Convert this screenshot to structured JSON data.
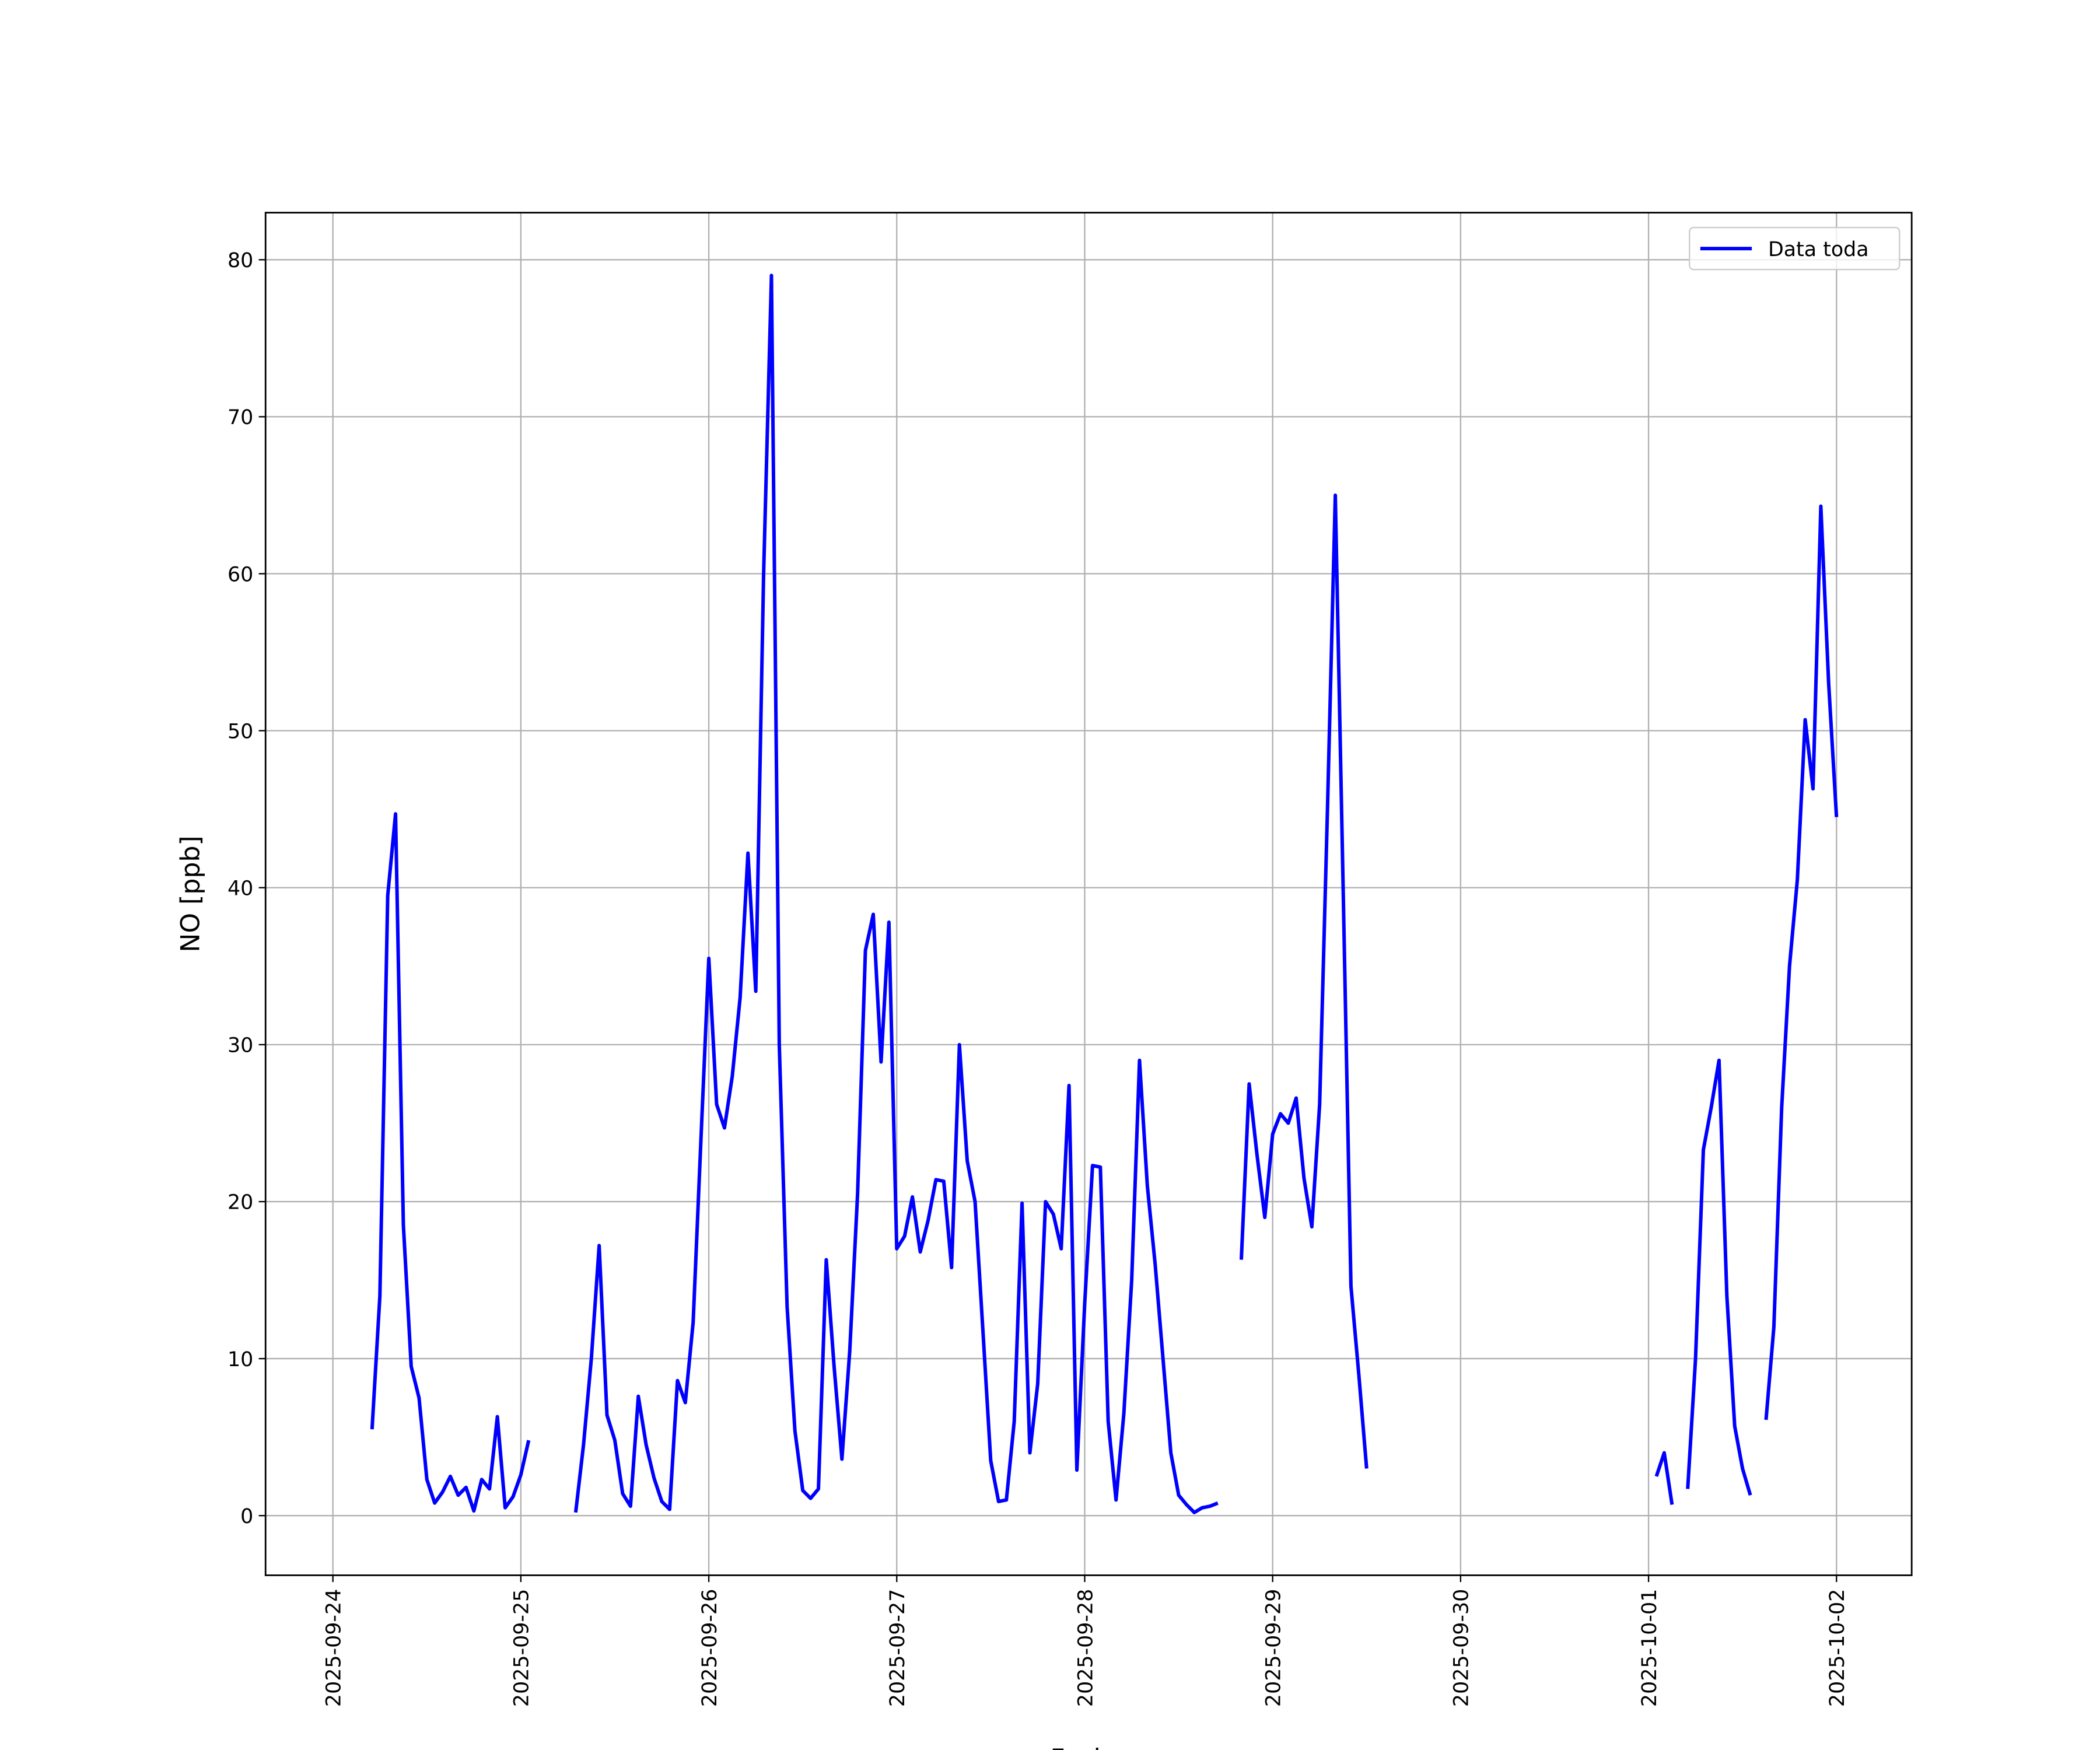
{
  "chart_data": {
    "type": "line",
    "xlabel": "Fecha",
    "ylabel": "NO [ppb]",
    "x": [
      "2025-09-24T05:00",
      "2025-09-24T06:00",
      "2025-09-24T07:00",
      "2025-09-24T08:00",
      "2025-09-24T09:00",
      "2025-09-24T10:00",
      "2025-09-24T11:00",
      "2025-09-24T12:00",
      "2025-09-24T13:00",
      "2025-09-24T14:00",
      "2025-09-24T15:00",
      "2025-09-24T16:00",
      "2025-09-24T17:00",
      "2025-09-24T18:00",
      "2025-09-24T19:00",
      "2025-09-24T20:00",
      "2025-09-24T21:00",
      "2025-09-24T22:00",
      "2025-09-24T23:00",
      "2025-09-25T00:00",
      "2025-09-25T01:00",
      "2025-09-25T02:00",
      "2025-09-25T07:00",
      "2025-09-25T08:00",
      "2025-09-25T09:00",
      "2025-09-25T10:00",
      "2025-09-25T11:00",
      "2025-09-25T12:00",
      "2025-09-25T13:00",
      "2025-09-25T14:00",
      "2025-09-25T15:00",
      "2025-09-25T16:00",
      "2025-09-25T17:00",
      "2025-09-25T18:00",
      "2025-09-25T19:00",
      "2025-09-25T20:00",
      "2025-09-25T21:00",
      "2025-09-25T22:00",
      "2025-09-25T23:00",
      "2025-09-26T00:00",
      "2025-09-26T01:00",
      "2025-09-26T02:00",
      "2025-09-26T03:00",
      "2025-09-26T04:00",
      "2025-09-26T05:00",
      "2025-09-26T06:00",
      "2025-09-26T07:00",
      "2025-09-26T08:00",
      "2025-09-26T09:00",
      "2025-09-26T10:00",
      "2025-09-26T11:00",
      "2025-09-26T12:00",
      "2025-09-26T13:00",
      "2025-09-26T14:00",
      "2025-09-26T15:00",
      "2025-09-26T16:00",
      "2025-09-26T17:00",
      "2025-09-26T18:00",
      "2025-09-26T19:00",
      "2025-09-26T20:00",
      "2025-09-26T21:00",
      "2025-09-26T22:00",
      "2025-09-26T23:00",
      "2025-09-27T00:00",
      "2025-09-27T01:00",
      "2025-09-27T02:00",
      "2025-09-27T03:00",
      "2025-09-27T04:00",
      "2025-09-27T05:00",
      "2025-09-27T06:00",
      "2025-09-27T07:00",
      "2025-09-27T08:00",
      "2025-09-27T09:00",
      "2025-09-27T10:00",
      "2025-09-27T11:00",
      "2025-09-27T12:00",
      "2025-09-27T13:00",
      "2025-09-27T14:00",
      "2025-09-27T15:00",
      "2025-09-27T16:00",
      "2025-09-27T17:00",
      "2025-09-27T18:00",
      "2025-09-27T19:00",
      "2025-09-27T20:00",
      "2025-09-27T21:00",
      "2025-09-27T22:00",
      "2025-09-27T23:00",
      "2025-09-28T00:00",
      "2025-09-28T01:00",
      "2025-09-28T02:00",
      "2025-09-28T03:00",
      "2025-09-28T04:00",
      "2025-09-28T05:00",
      "2025-09-28T06:00",
      "2025-09-28T07:00",
      "2025-09-28T08:00",
      "2025-09-28T09:00",
      "2025-09-28T10:00",
      "2025-09-28T11:00",
      "2025-09-28T12:00",
      "2025-09-28T13:00",
      "2025-09-28T14:00",
      "2025-09-28T15:00",
      "2025-09-28T16:00",
      "2025-09-28T17:00",
      "2025-09-28T18:00",
      "2025-09-28T20:00",
      "2025-09-28T21:00",
      "2025-09-28T22:00",
      "2025-09-28T23:00",
      "2025-09-29T00:00",
      "2025-09-29T01:00",
      "2025-09-29T02:00",
      "2025-09-29T03:00",
      "2025-09-29T04:00",
      "2025-09-29T05:00",
      "2025-09-29T06:00",
      "2025-09-29T07:00",
      "2025-09-29T08:00",
      "2025-09-29T09:00",
      "2025-09-29T10:00",
      "2025-09-29T11:00",
      "2025-09-29T12:00",
      "2025-09-29T13:00",
      "2025-10-01T01:00",
      "2025-10-01T02:00",
      "2025-10-01T03:00",
      "2025-10-01T04:00",
      "2025-10-01T05:00",
      "2025-10-01T06:00",
      "2025-10-01T07:00",
      "2025-10-01T08:00",
      "2025-10-01T09:00",
      "2025-10-01T10:00",
      "2025-10-01T11:00",
      "2025-10-01T12:00",
      "2025-10-01T13:00",
      "2025-10-01T14:00",
      "2025-10-01T15:00",
      "2025-10-01T16:00",
      "2025-10-01T17:00",
      "2025-10-01T18:00",
      "2025-10-01T19:00",
      "2025-10-01T20:00",
      "2025-10-01T21:00",
      "2025-10-01T22:00",
      "2025-10-01T23:00",
      "2025-10-02T00:00"
    ],
    "series": [
      {
        "name": "Data toda",
        "color": "#0000ff",
        "values": [
          5.5,
          14,
          39.5,
          44.7,
          18.5,
          9.5,
          7.5,
          2.3,
          0.8,
          1.5,
          2.5,
          1.3,
          1.8,
          0.3,
          2.3,
          1.7,
          6.3,
          0.5,
          1.2,
          2.6,
          4.8,
          null,
          0.2,
          4.5,
          10,
          17.2,
          6.4,
          4.8,
          1.4,
          0.6,
          7.6,
          4.5,
          2.4,
          0.9,
          0.4,
          8.6,
          7.2,
          12.3,
          24,
          35.5,
          26.2,
          24.7,
          28,
          33,
          42.2,
          33.4,
          60,
          79,
          30,
          13.3,
          5.4,
          1.6,
          1.1,
          1.7,
          16.3,
          9.5,
          3.6,
          10.5,
          20.5,
          36,
          38.3,
          28.9,
          37.8,
          17,
          17.8,
          20.3,
          16.8,
          18.8,
          21.4,
          21.3,
          15.8,
          30,
          22.6,
          20,
          11.8,
          3.5,
          0.9,
          1,
          6,
          19.9,
          4,
          8.4,
          20,
          19.2,
          17,
          27.4,
          2.9,
          13.5,
          22.3,
          22.2,
          6,
          1,
          6.5,
          15,
          29,
          21,
          16,
          10,
          4,
          1.3,
          0.7,
          0.2,
          0.5,
          0.6,
          0.8,
          null,
          16.3,
          27.5,
          23,
          19,
          24.3,
          25.6,
          25,
          26.6,
          21.5,
          18.4,
          26.2,
          45,
          65,
          40,
          14.6,
          9,
          3,
          null,
          2.5,
          4,
          0.7,
          null,
          1.7,
          10,
          23.3,
          26,
          29,
          14,
          5.7,
          3,
          1.3,
          null,
          6.1,
          12,
          26,
          35,
          40.5,
          50.7,
          46.3,
          64.3,
          53,
          44.5
        ]
      }
    ],
    "xlim": [
      "2025-09-23T15:24",
      "2025-10-02T09:36"
    ],
    "xticks": [
      "2025-09-24",
      "2025-09-25",
      "2025-09-26",
      "2025-09-27",
      "2025-09-28",
      "2025-09-29",
      "2025-09-30",
      "2025-10-01",
      "2025-10-02"
    ],
    "ylim": [
      -3.8,
      83
    ],
    "yticks": [
      0,
      10,
      20,
      30,
      40,
      50,
      60,
      70,
      80
    ],
    "grid": true,
    "legend": "upper right"
  }
}
